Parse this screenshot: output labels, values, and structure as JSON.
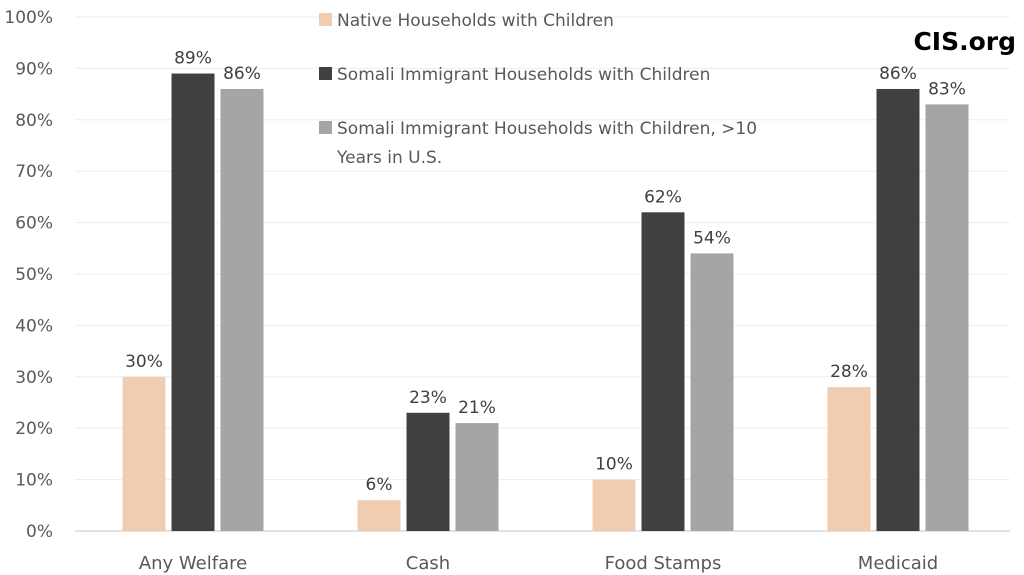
{
  "chart_data": {
    "type": "bar",
    "title": "",
    "xlabel": "",
    "ylabel": "",
    "ylim": [
      0,
      100
    ],
    "yticks": [
      "0%",
      "10%",
      "20%",
      "30%",
      "40%",
      "50%",
      "60%",
      "70%",
      "80%",
      "90%",
      "100%"
    ],
    "grid": true,
    "legend_position": "top-center",
    "categories": [
      "Any Welfare",
      "Cash",
      "Food Stamps",
      "Medicaid"
    ],
    "series": [
      {
        "name": "Native Households with Children",
        "color": "#F0CDB0",
        "values": [
          30,
          6,
          10,
          28
        ],
        "labels": [
          "30%",
          "6%",
          "10%",
          "28%"
        ]
      },
      {
        "name": "Somali Immigrant Households with Children",
        "color": "#404040",
        "values": [
          89,
          23,
          62,
          86
        ],
        "labels": [
          "89%",
          "23%",
          "62%",
          "86%"
        ]
      },
      {
        "name": "Somali Immigrant Households with Children, >10 Years in U.S.",
        "name_lines": [
          "Somali Immigrant Households with Children, >10",
          "Years in U.S."
        ],
        "color": "#A5A5A5",
        "values": [
          86,
          21,
          54,
          83
        ],
        "labels": [
          "86%",
          "21%",
          "54%",
          "83%"
        ]
      }
    ],
    "annotation": "CIS.org"
  }
}
